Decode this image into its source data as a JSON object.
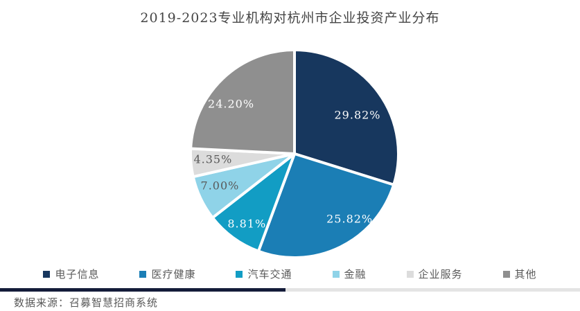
{
  "title": "2019-2023专业机构对杭州市企业投资产业分布",
  "source_note": "数据来源：召募智慧招商系统",
  "chart_data": {
    "type": "pie",
    "title": "2019-2023专业机构对杭州市企业投资产业分布",
    "categories": [
      "电子信息",
      "医疗健康",
      "汽车交通",
      "金融",
      "企业服务",
      "其他"
    ],
    "values": [
      29.82,
      25.82,
      8.81,
      7.0,
      4.35,
      24.2
    ],
    "labels": [
      "29.82%",
      "25.82%",
      "8.81%",
      "7.00%",
      "4.35%",
      "24.20%"
    ],
    "colors": [
      "#17375E",
      "#1B7EB5",
      "#129DC4",
      "#8FD3E8",
      "#DCDCDC",
      "#8F8F8F"
    ],
    "start_angle_deg": 0,
    "direction": "clockwise",
    "legend_position": "bottom",
    "slice_gap_color": "#FFFFFF"
  },
  "legend": {
    "items": [
      "电子信息",
      "医疗健康",
      "汽车交通",
      "金融",
      "企业服务",
      "其他"
    ]
  },
  "footer_bar": {
    "left_color": "#141C39",
    "right_color": "#E4E4E4"
  },
  "text_colors": {
    "title": "#454545",
    "legend": "#595959",
    "source": "#595959",
    "label_dark": "#595959",
    "label_light": "#FFFFFF"
  }
}
